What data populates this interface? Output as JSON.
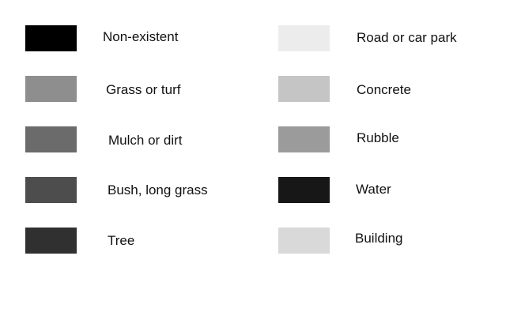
{
  "legend": {
    "items": [
      {
        "label": "Non-existent",
        "color": "#000000"
      },
      {
        "label": "Grass or turf",
        "color": "#8e8e8e"
      },
      {
        "label": "Mulch or dirt",
        "color": "#6b6b6b"
      },
      {
        "label": "Bush, long grass",
        "color": "#4d4d4d"
      },
      {
        "label": "Tree",
        "color": "#303030"
      },
      {
        "label": "Road or car park",
        "color": "#ececec"
      },
      {
        "label": "Concrete",
        "color": "#c5c5c5"
      },
      {
        "label": "Rubble",
        "color": "#9b9b9b"
      },
      {
        "label": "Water",
        "color": "#171717"
      },
      {
        "label": "Building",
        "color": "#d9d9d9"
      }
    ]
  }
}
